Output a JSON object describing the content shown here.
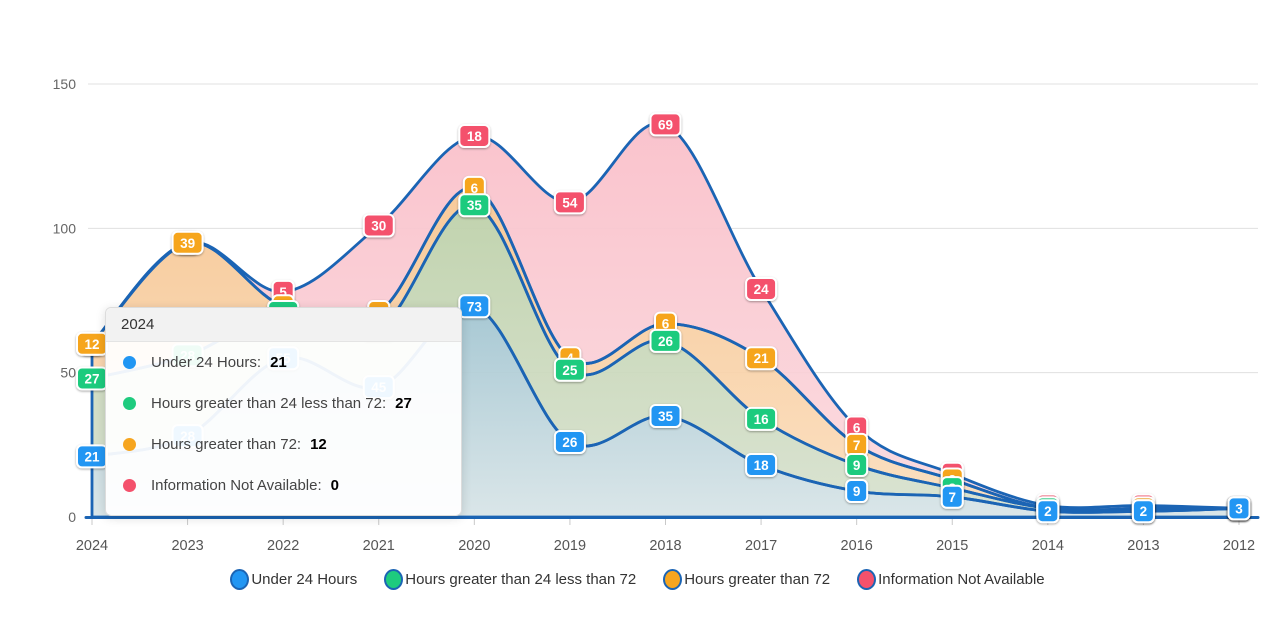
{
  "chart_data": {
    "type": "area",
    "stacked": true,
    "title": "",
    "xlabel": "",
    "ylabel": "",
    "categories": [
      "2024",
      "2023",
      "2022",
      "2021",
      "2020",
      "2019",
      "2018",
      "2017",
      "2016",
      "2015",
      "2014",
      "2013",
      "2012"
    ],
    "series": [
      {
        "id": "under-24-hours",
        "name": "Under 24 Hours",
        "color": "#2196f3",
        "values": [
          21,
          28,
          55,
          45,
          73,
          26,
          35,
          18,
          9,
          7,
          2,
          2,
          3
        ]
      },
      {
        "id": "hours-24-to-72",
        "name": "Hours greater than 24 less than 72",
        "color": "#1ecb7e",
        "values": [
          27,
          28,
          16,
          20,
          35,
          25,
          26,
          16,
          9,
          3,
          1,
          0,
          0
        ]
      },
      {
        "id": "hours-over-72",
        "name": "Hours greater than 72",
        "color": "#f6a51f",
        "values": [
          12,
          39,
          2,
          6,
          6,
          4,
          6,
          21,
          7,
          3,
          0,
          1,
          0
        ]
      },
      {
        "id": "info-not-available",
        "name": "Information Not Available",
        "color": "#f4516c",
        "values": [
          0,
          0,
          5,
          30,
          18,
          54,
          69,
          24,
          6,
          2,
          1,
          1,
          0
        ]
      }
    ],
    "ylim": [
      0,
      150
    ],
    "yticks": [
      0,
      50,
      100,
      150
    ],
    "grid": true,
    "legend_position": "bottom",
    "line_color": "#1b64b4",
    "band_fills": [
      {
        "top": "#a2c5d1",
        "bottom": "#d6e3e6"
      },
      {
        "top": "#bed1aa",
        "bottom": "#d6e0cd"
      },
      {
        "top": "#f7c795",
        "bottom": "#fadcba"
      },
      {
        "top": "#f9c0ca",
        "bottom": "#fbd8dd"
      }
    ]
  },
  "tooltip": {
    "title": "2024",
    "rows": [
      {
        "label": "Under 24 Hours:",
        "value": "21",
        "color": "#2196f3"
      },
      {
        "label": "Hours greater than 24 less than 72:",
        "value": "27",
        "color": "#1ecb7e"
      },
      {
        "label": "Hours greater than 72:",
        "value": "12",
        "color": "#f6a51f"
      },
      {
        "label": "Information Not Available:",
        "value": "0",
        "color": "#f4516c"
      }
    ]
  },
  "legend": {
    "items": [
      {
        "id": "under-24-hours",
        "label": "Under 24 Hours",
        "color": "#2196f3"
      },
      {
        "id": "hours-24-to-72",
        "label": "Hours greater than 24 less than 72",
        "color": "#1ecb7e"
      },
      {
        "id": "hours-over-72",
        "label": "Hours greater than 72",
        "color": "#f6a51f"
      },
      {
        "id": "info-not-available",
        "label": "Information Not Available",
        "color": "#f4516c"
      }
    ]
  }
}
